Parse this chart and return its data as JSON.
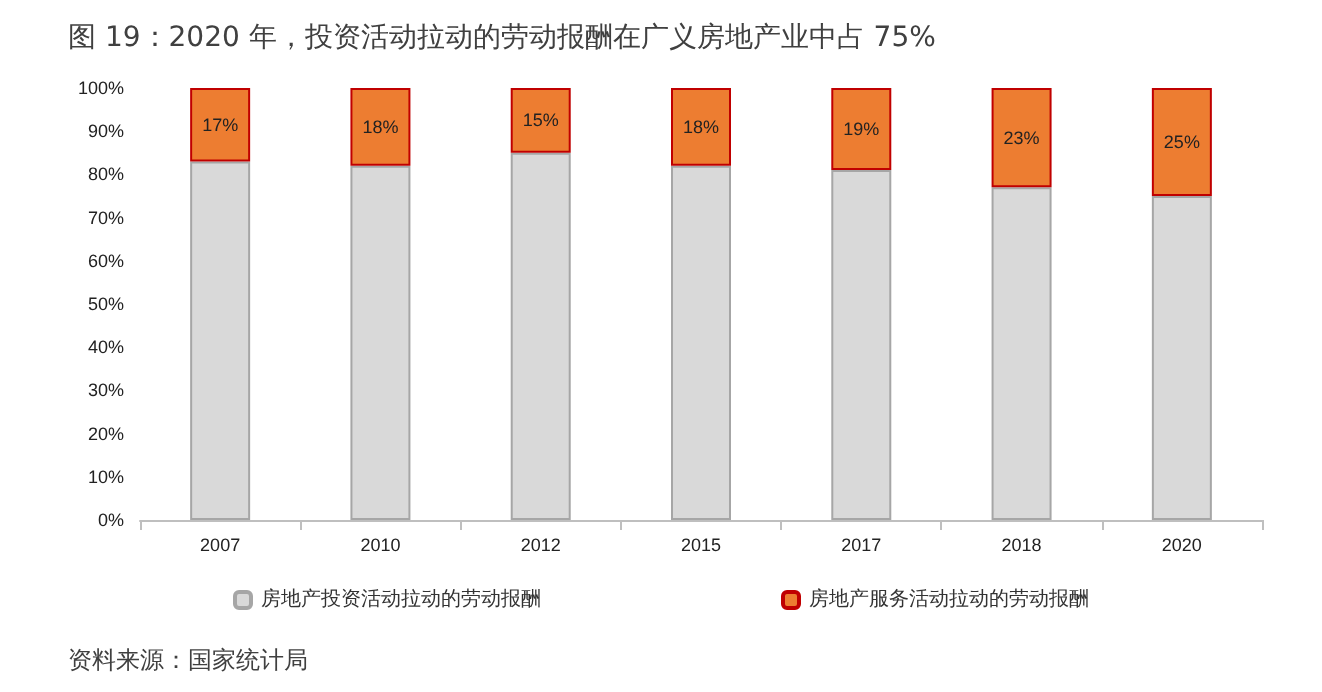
{
  "chart_data": {
    "type": "bar",
    "title": "图 19：2020 年，投资活动拉动的劳动报酬在广义房地产业中占 75%",
    "categories": [
      "2007",
      "2010",
      "2012",
      "2015",
      "2017",
      "2018",
      "2020"
    ],
    "stacked": true,
    "series": [
      {
        "name": "房地产投资活动拉动的劳动报酬",
        "color": "#d9d9d9",
        "values": [
          83,
          82,
          85,
          82,
          81,
          77,
          75
        ]
      },
      {
        "name": "房地产服务活动拉动的劳动报酬",
        "color": "#ed7d31",
        "values": [
          17,
          18,
          15,
          18,
          19,
          23,
          25
        ],
        "value_labels": [
          "17%",
          "18%",
          "15%",
          "18%",
          "19%",
          "23%",
          "25%"
        ]
      }
    ],
    "ylim": [
      0,
      100
    ],
    "yticks": [
      {
        "value": 0,
        "label": "0%"
      },
      {
        "value": 10,
        "label": "10%"
      },
      {
        "value": 20,
        "label": "20%"
      },
      {
        "value": 30,
        "label": "30%"
      },
      {
        "value": 40,
        "label": "40%"
      },
      {
        "value": 50,
        "label": "50%"
      },
      {
        "value": 60,
        "label": "60%"
      },
      {
        "value": 70,
        "label": "70%"
      },
      {
        "value": 80,
        "label": "80%"
      },
      {
        "value": 90,
        "label": "90%"
      },
      {
        "value": 100,
        "label": "100%"
      }
    ],
    "grid": false,
    "legend": "bottom",
    "annotations": [
      "资料来源：国家统计局"
    ]
  }
}
